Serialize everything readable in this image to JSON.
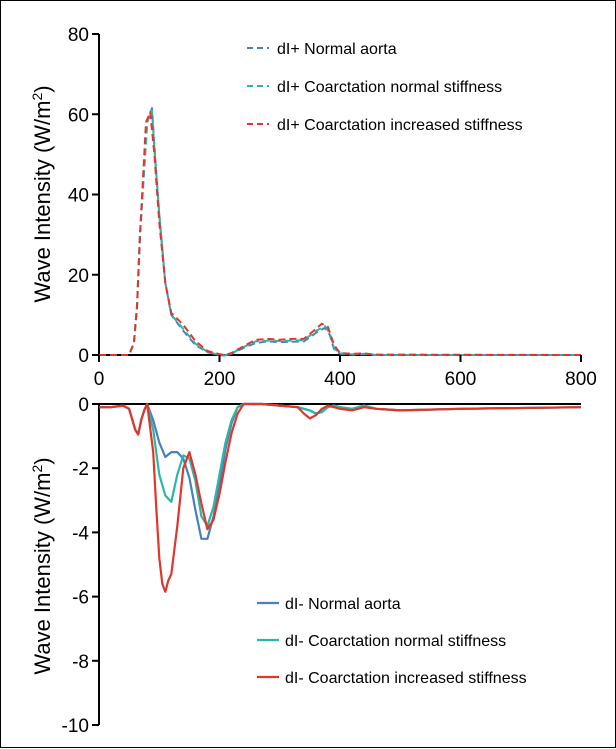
{
  "chart_data": [
    {
      "type": "line",
      "ylabel": "Wave Intensity (W/m²)",
      "ylabel_main": "Wave Intensity (W/m",
      "ylabel_sup": "2",
      "ylabel_close": ")",
      "xlim": [
        0,
        800
      ],
      "ylim": [
        0,
        80
      ],
      "x_ticks": [
        "0",
        "200",
        "400",
        "600",
        "800"
      ],
      "y_ticks": [
        "0",
        "20",
        "40",
        "60",
        "80"
      ],
      "line_style": "dashed",
      "legend_position": "top-right",
      "series": [
        {
          "name": "dI+ Normal aorta",
          "color": "#4a7ebf",
          "x": [
            0,
            50,
            58,
            63,
            68,
            80,
            88,
            92,
            100,
            110,
            120,
            140,
            160,
            180,
            200,
            210,
            220,
            240,
            260,
            280,
            300,
            320,
            340,
            360,
            375,
            383,
            390,
            400,
            420,
            440,
            460,
            800
          ],
          "y": [
            0,
            0,
            3,
            12,
            30,
            58,
            61.5,
            52,
            35,
            18,
            10,
            6,
            2.5,
            0.7,
            0,
            -0.2,
            0.3,
            1.8,
            3,
            3.4,
            3.2,
            3.3,
            3.4,
            5.5,
            6.8,
            5,
            1.5,
            0.3,
            0.1,
            0.2,
            0,
            0
          ]
        },
        {
          "name": "dI+ Coarctation normal stiffness",
          "color": "#2ab8a6",
          "x": [
            0,
            50,
            58,
            63,
            68,
            80,
            88,
            92,
            100,
            110,
            120,
            140,
            160,
            180,
            200,
            210,
            220,
            240,
            260,
            280,
            300,
            320,
            340,
            360,
            375,
            383,
            390,
            400,
            420,
            440,
            460,
            800
          ],
          "y": [
            0,
            0,
            3,
            12,
            30,
            58,
            61,
            51.5,
            35,
            18,
            10,
            6.5,
            2.8,
            0.8,
            0,
            -0.1,
            0.4,
            2,
            3.4,
            3.6,
            3.5,
            3.6,
            3.7,
            6,
            7.2,
            5.5,
            1.8,
            0.4,
            0.2,
            0.3,
            0,
            0
          ]
        },
        {
          "name": "dI+ Coarctation increased stiffness",
          "color": "#e0362c",
          "x": [
            0,
            50,
            58,
            63,
            68,
            78,
            85,
            92,
            100,
            110,
            120,
            140,
            160,
            180,
            200,
            210,
            220,
            240,
            260,
            280,
            300,
            320,
            340,
            360,
            370,
            380,
            390,
            400,
            420,
            440,
            460,
            800
          ],
          "y": [
            0,
            0,
            3,
            12,
            30,
            58,
            60.5,
            50,
            33,
            18,
            10.5,
            7.5,
            3.5,
            1,
            0.2,
            0,
            0.5,
            2.2,
            3.8,
            4,
            3.8,
            4,
            4,
            6.5,
            7.8,
            7,
            2.5,
            0.5,
            0.3,
            0.4,
            0.1,
            0
          ]
        }
      ]
    },
    {
      "type": "line",
      "ylabel": "Wave Intensity (W/m²)",
      "ylabel_main": "Wave Intensity (W/m",
      "ylabel_sup": "2",
      "ylabel_close": ")",
      "xlim": [
        0,
        800
      ],
      "ylim": [
        -10,
        0
      ],
      "y_ticks": [
        "0",
        "-2",
        "-4",
        "-6",
        "-8",
        "-10"
      ],
      "line_style": "solid",
      "legend_position": "bottom-right",
      "series": [
        {
          "name": "dI- Normal aorta",
          "color": "#4a7ebf",
          "x": [
            0,
            20,
            40,
            50,
            60,
            65,
            70,
            75,
            80,
            90,
            100,
            110,
            120,
            130,
            140,
            150,
            160,
            170,
            180,
            190,
            200,
            210,
            220,
            230,
            240,
            250,
            260,
            270,
            300,
            330,
            350,
            360,
            370,
            380,
            390,
            400,
            420,
            440,
            460,
            500,
            600,
            800
          ],
          "y": [
            -0.1,
            -0.1,
            -0.05,
            -0.15,
            -0.8,
            -0.95,
            -0.5,
            -0.2,
            0,
            -0.5,
            -1.2,
            -1.65,
            -1.5,
            -1.5,
            -1.7,
            -2.3,
            -3.3,
            -4.2,
            -4.2,
            -3.5,
            -2.5,
            -1.4,
            -0.6,
            -0.1,
            0,
            0,
            0,
            0,
            -0.05,
            -0.1,
            -0.2,
            -0.3,
            -0.25,
            -0.1,
            -0.05,
            -0.1,
            -0.15,
            -0.05,
            -0.15,
            -0.2,
            -0.15,
            -0.1
          ]
        },
        {
          "name": "dI- Coarctation normal stiffness",
          "color": "#2ab8a6",
          "x": [
            0,
            20,
            40,
            50,
            60,
            65,
            70,
            75,
            80,
            90,
            100,
            110,
            120,
            130,
            140,
            150,
            160,
            170,
            180,
            190,
            200,
            210,
            220,
            230,
            240,
            250,
            260,
            270,
            300,
            330,
            350,
            360,
            370,
            380,
            390,
            400,
            420,
            440,
            460,
            500,
            600,
            800
          ],
          "y": [
            -0.1,
            -0.1,
            -0.05,
            -0.15,
            -0.8,
            -0.95,
            -0.5,
            -0.2,
            0,
            -0.8,
            -2.2,
            -2.85,
            -3.05,
            -2.2,
            -1.6,
            -1.7,
            -2.4,
            -3.5,
            -3.8,
            -3.2,
            -2.2,
            -1.2,
            -0.5,
            -0.1,
            0,
            0,
            0,
            0,
            -0.05,
            -0.1,
            -0.2,
            -0.3,
            -0.25,
            -0.1,
            -0.05,
            -0.1,
            -0.15,
            -0.05,
            -0.15,
            -0.2,
            -0.15,
            -0.1
          ]
        },
        {
          "name": "dI- Coarctation increased stiffness",
          "color": "#e0362c",
          "x": [
            0,
            20,
            40,
            50,
            60,
            65,
            70,
            75,
            80,
            90,
            95,
            100,
            105,
            110,
            115,
            120,
            130,
            140,
            150,
            160,
            170,
            180,
            190,
            200,
            210,
            220,
            230,
            240,
            250,
            260,
            270,
            300,
            330,
            340,
            350,
            360,
            370,
            380,
            390,
            400,
            420,
            440,
            460,
            500,
            600,
            800
          ],
          "y": [
            -0.1,
            -0.1,
            -0.05,
            -0.15,
            -0.8,
            -0.95,
            -0.5,
            -0.2,
            0,
            -1.5,
            -3.2,
            -4.8,
            -5.6,
            -5.85,
            -5.5,
            -5.3,
            -3.8,
            -2,
            -1.5,
            -2.2,
            -3.1,
            -3.9,
            -3.6,
            -2.8,
            -1.8,
            -0.9,
            -0.3,
            0,
            0,
            0,
            0,
            -0.05,
            -0.1,
            -0.3,
            -0.45,
            -0.35,
            -0.15,
            -0.05,
            -0.1,
            -0.15,
            -0.2,
            -0.1,
            -0.15,
            -0.2,
            -0.15,
            -0.1
          ]
        }
      ]
    }
  ]
}
